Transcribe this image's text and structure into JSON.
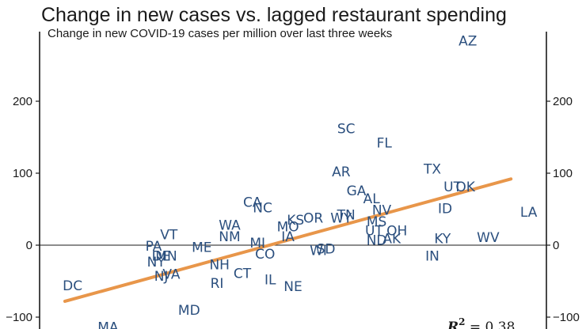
{
  "chart_data": {
    "type": "scatter",
    "title": "Change in new cases vs. lagged restaurant spending",
    "subtitle": "Change in new COVID-19 cases per million over last three weeks",
    "ylabel": "",
    "xlabel": "",
    "ylim": [
      -115,
      300
    ],
    "xlim": [
      0,
      100
    ],
    "y_ticks": [
      {
        "value": 200,
        "label": "200"
      },
      {
        "value": 100,
        "label": "100"
      },
      {
        "value": 0,
        "label": "0"
      },
      {
        "value": -100,
        "label": "−100"
      }
    ],
    "zero_line": true,
    "annotation": {
      "label": "R",
      "superscript": "2",
      "text": " = 0.38"
    },
    "trendline": {
      "color": "#e8964a",
      "x_start": 5,
      "y_start": -78,
      "x_end": 93,
      "y_end": 92
    },
    "colors": {
      "points": "#2b4f7e",
      "axes": "#1a1a1a",
      "trend": "#e8964a"
    },
    "points": [
      {
        "label": "AZ",
        "x": 84.5,
        "y": 283
      },
      {
        "label": "SC",
        "x": 60.5,
        "y": 161
      },
      {
        "label": "FL",
        "x": 68.0,
        "y": 141
      },
      {
        "label": "TX",
        "x": 77.5,
        "y": 105
      },
      {
        "label": "AR",
        "x": 59.5,
        "y": 101
      },
      {
        "label": "UT",
        "x": 81.5,
        "y": 80
      },
      {
        "label": "OK",
        "x": 84.0,
        "y": 80
      },
      {
        "label": "GA",
        "x": 62.5,
        "y": 75
      },
      {
        "label": "AL",
        "x": 65.5,
        "y": 64
      },
      {
        "label": "ID",
        "x": 80.0,
        "y": 50
      },
      {
        "label": "NV",
        "x": 67.5,
        "y": 48
      },
      {
        "label": "LA",
        "x": 96.5,
        "y": 45
      },
      {
        "label": "CA",
        "x": 42.0,
        "y": 59
      },
      {
        "label": "NC",
        "x": 44.0,
        "y": 51
      },
      {
        "label": "TN",
        "x": 60.5,
        "y": 41
      },
      {
        "label": "WY",
        "x": 59.5,
        "y": 37
      },
      {
        "label": "MS",
        "x": 66.5,
        "y": 32
      },
      {
        "label": "KS",
        "x": 50.5,
        "y": 34
      },
      {
        "label": "OR",
        "x": 54.0,
        "y": 37
      },
      {
        "label": "MO",
        "x": 49.0,
        "y": 25
      },
      {
        "label": "WA",
        "x": 37.5,
        "y": 27
      },
      {
        "label": "NM",
        "x": 37.5,
        "y": 11
      },
      {
        "label": "VT",
        "x": 25.5,
        "y": 14
      },
      {
        "label": "UT",
        "x": 66.0,
        "y": 19
      },
      {
        "label": "OH",
        "x": 70.5,
        "y": 19
      },
      {
        "label": "IA",
        "x": 49.0,
        "y": 11
      },
      {
        "label": "ND",
        "x": 66.5,
        "y": 6
      },
      {
        "label": "AK",
        "x": 69.5,
        "y": 8
      },
      {
        "label": "KY",
        "x": 79.5,
        "y": 8
      },
      {
        "label": "WV",
        "x": 88.5,
        "y": 10
      },
      {
        "label": "PA",
        "x": 22.5,
        "y": -2
      },
      {
        "label": "ME",
        "x": 32.0,
        "y": -4
      },
      {
        "label": "MI",
        "x": 43.0,
        "y": 2
      },
      {
        "label": "WI",
        "x": 55.0,
        "y": -8
      },
      {
        "label": "SD",
        "x": 56.5,
        "y": -6
      },
      {
        "label": "CO",
        "x": 44.5,
        "y": -13
      },
      {
        "label": "IN",
        "x": 77.5,
        "y": -16
      },
      {
        "label": "DE",
        "x": 24.0,
        "y": -16
      },
      {
        "label": "MN",
        "x": 25.0,
        "y": -16
      },
      {
        "label": "NY",
        "x": 23.0,
        "y": -24
      },
      {
        "label": "NH",
        "x": 35.5,
        "y": -28
      },
      {
        "label": "CT",
        "x": 40.0,
        "y": -40
      },
      {
        "label": "NJ",
        "x": 24.0,
        "y": -44
      },
      {
        "label": "VA",
        "x": 26.0,
        "y": -41
      },
      {
        "label": "IL",
        "x": 45.5,
        "y": -49
      },
      {
        "label": "RI",
        "x": 35.0,
        "y": -54
      },
      {
        "label": "NE",
        "x": 50.0,
        "y": -58
      },
      {
        "label": "DC",
        "x": 6.5,
        "y": -57
      },
      {
        "label": "MD",
        "x": 29.5,
        "y": -91
      },
      {
        "label": "MA",
        "x": 13.5,
        "y": -115
      }
    ]
  }
}
